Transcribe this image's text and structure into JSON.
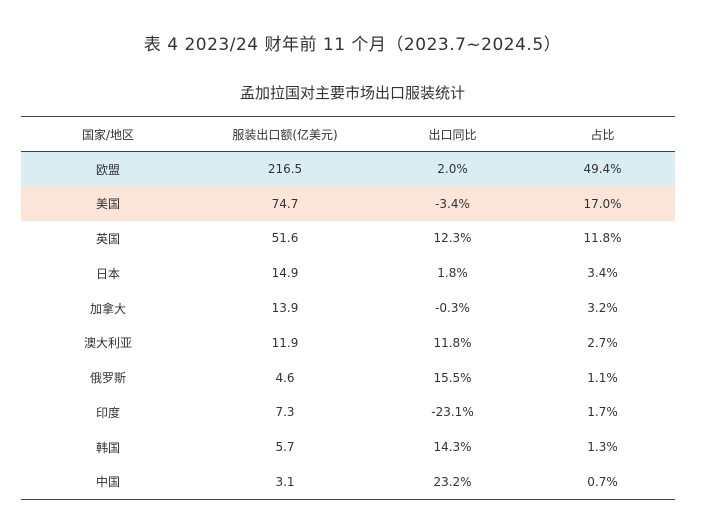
{
  "caption": "表 4   2023/24 财年前 11 个月（2023.7~2024.5）",
  "subtitle": "孟加拉国对主要市场出口服装统计",
  "table": {
    "headers": [
      "国家/地区",
      "服装出口额(亿美元)",
      "出口同比",
      "占比"
    ],
    "rows": [
      {
        "country": "欧盟",
        "export": "216.5",
        "yoy": "2.0%",
        "share": "49.4%"
      },
      {
        "country": "美国",
        "export": "74.7",
        "yoy": "-3.4%",
        "share": "17.0%"
      },
      {
        "country": "英国",
        "export": "51.6",
        "yoy": "12.3%",
        "share": "11.8%"
      },
      {
        "country": "日本",
        "export": "14.9",
        "yoy": "1.8%",
        "share": "3.4%"
      },
      {
        "country": "加拿大",
        "export": "13.9",
        "yoy": "-0.3%",
        "share": "3.2%"
      },
      {
        "country": "澳大利亚",
        "export": "11.9",
        "yoy": "11.8%",
        "share": "2.7%"
      },
      {
        "country": "俄罗斯",
        "export": "4.6",
        "yoy": "15.5%",
        "share": "1.1%"
      },
      {
        "country": "印度",
        "export": "7.3",
        "yoy": "-23.1%",
        "share": "1.7%"
      },
      {
        "country": "韩国",
        "export": "5.7",
        "yoy": "14.3%",
        "share": "1.3%"
      },
      {
        "country": "中国",
        "export": "3.1",
        "yoy": "23.2%",
        "share": "0.7%"
      }
    ]
  },
  "colors": {
    "eu_row_highlight": "#d9edf3",
    "us_row_highlight": "#fbe5d8"
  }
}
